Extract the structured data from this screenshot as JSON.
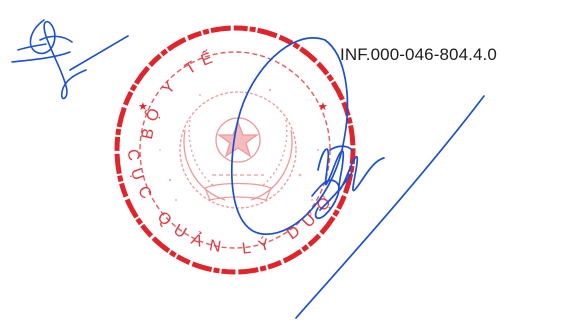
{
  "document": {
    "reference_code": "INF.000-046-804.4.0"
  },
  "seal": {
    "kind": "circular official stamp",
    "ring_text_top": "BỘ Y TẾ",
    "ring_text_bottom": "CỤC QUẢN LÝ DƯỢC",
    "ink_color": "#e0242c"
  },
  "signatures": {
    "ink_color": "#1c4fd1",
    "count": 2
  },
  "icons": [
    "seal-emblem-icon"
  ]
}
